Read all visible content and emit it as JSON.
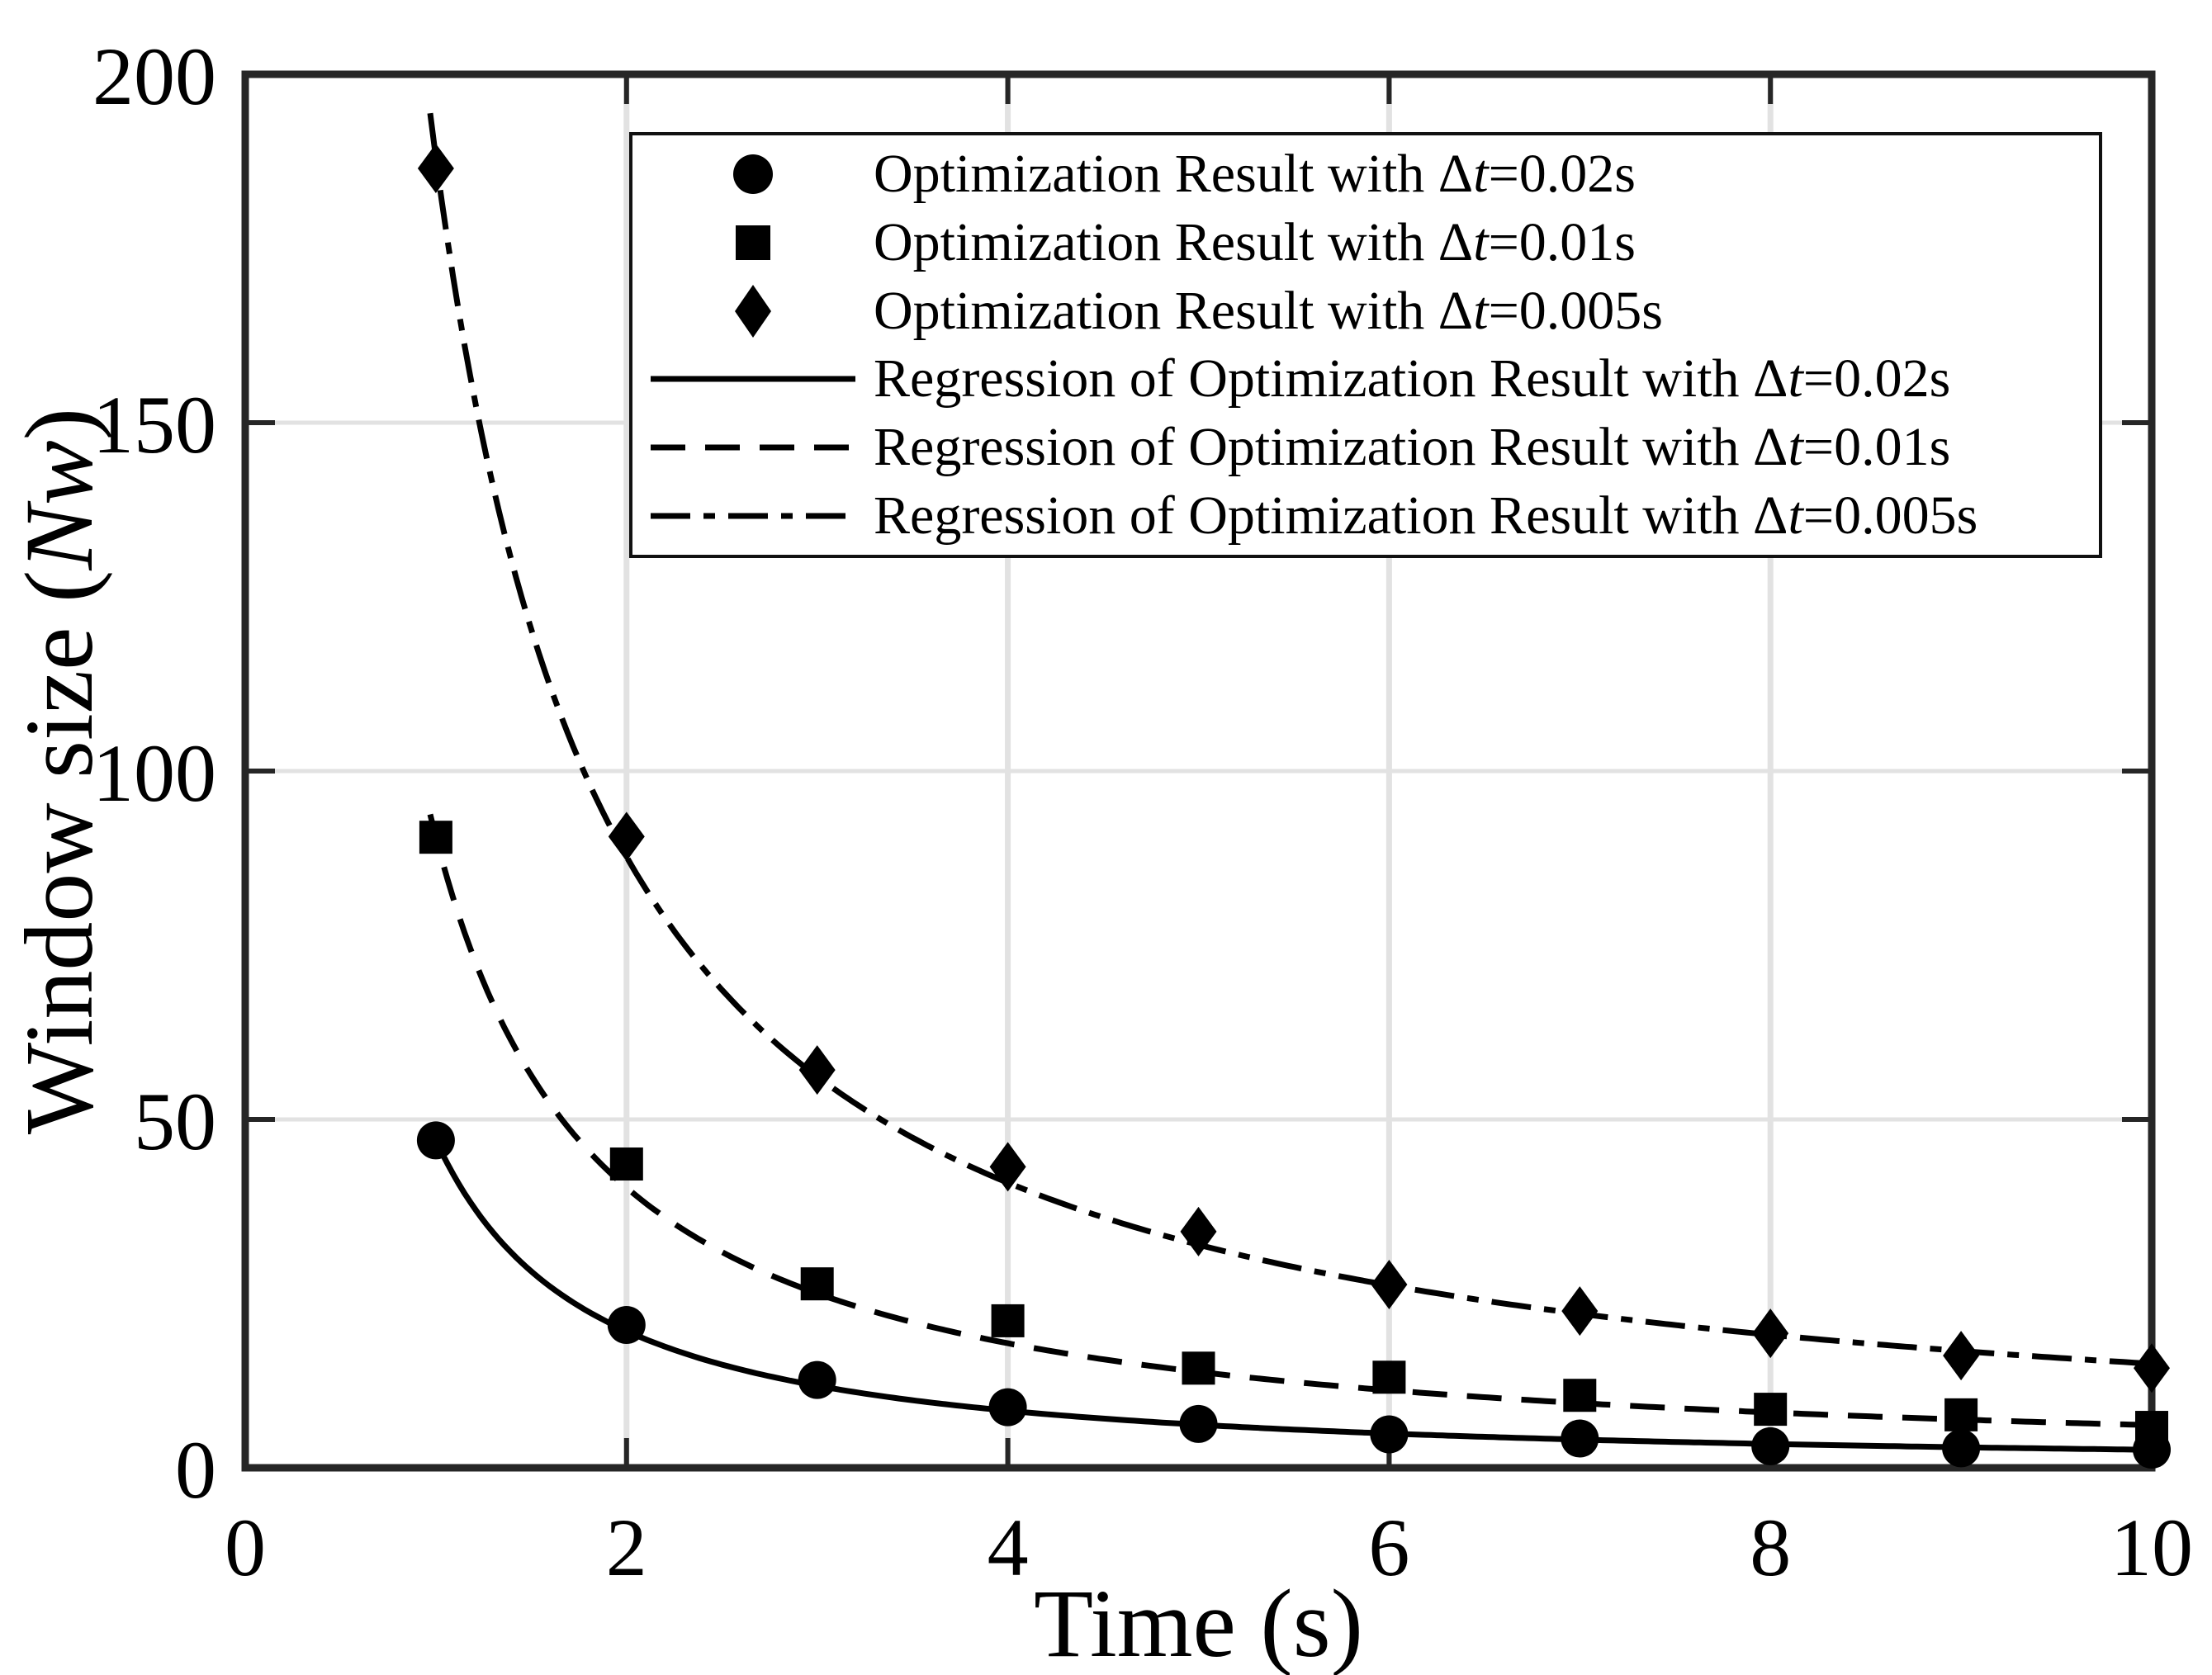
{
  "figure": {
    "xlabel": {
      "text": "Time (s)"
    },
    "ylabel": {
      "pre": "Window size (",
      "var": "Nw",
      "post": ")"
    }
  },
  "legend": {
    "entries": [
      {
        "kind": "marker",
        "marker": "circle",
        "label_pre": "Optimization Result with Δ",
        "label_var": "t",
        "label_post": "=0.02s"
      },
      {
        "kind": "marker",
        "marker": "square",
        "label_pre": "Optimization Result with Δ",
        "label_var": "t",
        "label_post": "=0.01s"
      },
      {
        "kind": "marker",
        "marker": "diamond",
        "label_pre": "Optimization Result with Δ",
        "label_var": "t",
        "label_post": "=0.005s"
      },
      {
        "kind": "line",
        "line": "solid",
        "label_pre": "Regression of Optimization Result with Δ",
        "label_var": "t",
        "label_post": "=0.02s"
      },
      {
        "kind": "line",
        "line": "dashed",
        "label_pre": "Regression of Optimization Result with Δ",
        "label_var": "t",
        "label_post": "=0.01s"
      },
      {
        "kind": "line",
        "line": "dashdot",
        "label_pre": "Regression of Optimization Result with Δ",
        "label_var": "t",
        "label_post": "=0.005s"
      }
    ]
  },
  "colors": {
    "ink": "#000000",
    "spine": "#262626",
    "grid": "#e2e2e2",
    "background": "#ffffff"
  },
  "chart_data": {
    "type": "scatter",
    "title": "",
    "xlabel": "Time (s)",
    "ylabel": "Window size (Nw)",
    "xlim": [
      0,
      10
    ],
    "ylim": [
      0,
      200
    ],
    "x_ticks": [
      0,
      2,
      4,
      6,
      8,
      10
    ],
    "y_ticks": [
      0,
      50,
      100,
      150,
      200
    ],
    "grid": true,
    "legend_position": "top-center-inside",
    "x": [
      1,
      2,
      3,
      4,
      5,
      6,
      7,
      8,
      9,
      10
    ],
    "series": [
      {
        "name": "Optimization Result with Δt=0.02s",
        "marker": "circle",
        "values": [
          47.0,
          20.5,
          12.6,
          8.7,
          6.3,
          4.8,
          4.2,
          3.1,
          2.8,
          2.6
        ]
      },
      {
        "name": "Optimization Result with Δt=0.01s",
        "marker": "square",
        "values": [
          90.5,
          43.6,
          26.4,
          21.1,
          14.3,
          13.0,
          10.4,
          8.4,
          7.6,
          5.8
        ]
      },
      {
        "name": "Optimization Result with Δt=0.005s",
        "marker": "diamond",
        "values": [
          186.5,
          90.6,
          57.1,
          43.2,
          33.9,
          26.3,
          22.5,
          19.3,
          16.1,
          14.3
        ]
      }
    ],
    "regressions": [
      {
        "name": "Regression of Optimization Result with Δt=0.02s",
        "style": "solid",
        "model": "power",
        "a": 47.0,
        "b": -1.26,
        "t_range": [
          0.97,
          10
        ]
      },
      {
        "name": "Regression of Optimization Result with Δt=0.01s",
        "style": "dashed",
        "model": "power",
        "a": 90.5,
        "b": -1.17,
        "t_range": [
          0.97,
          10
        ]
      },
      {
        "name": "Regression of Optimization Result with Δt=0.005s",
        "style": "dashdot",
        "model": "power",
        "a": 188.0,
        "b": -1.1,
        "t_range": [
          0.97,
          10
        ]
      }
    ]
  }
}
